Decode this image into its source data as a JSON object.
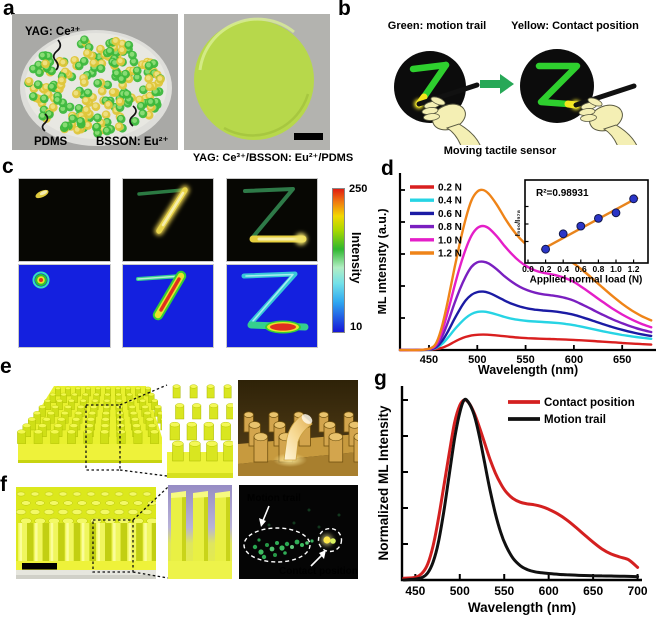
{
  "figure": {
    "panels": {
      "a": {
        "label": "a",
        "yag_label": "YAG: Ce³⁺",
        "pdms_label": "PDMS",
        "bsson_label": "BSSON: Eu²⁺",
        "caption": "YAG: Ce³⁺/BSSON: Eu²⁺/PDMS"
      },
      "b": {
        "label": "b",
        "green_label": "Green: motion trail",
        "yellow_label": "Yellow: Contact position",
        "caption": "Moving tactile sensor"
      },
      "c": {
        "label": "c",
        "colorbar": {
          "max": "250",
          "min": "10",
          "title": "Intensity"
        }
      },
      "d": {
        "label": "d"
      },
      "e": {
        "label": "e"
      },
      "f": {
        "label": "f",
        "annotations": {
          "motion_trail": "Motion trail",
          "contact_position": "Contact position"
        }
      },
      "g": {
        "label": "g"
      }
    }
  },
  "chart_data": [
    {
      "id": "d-ml-spectra",
      "type": "line",
      "xlabel": "Wavelength (nm)",
      "ylabel": "ML intensity (a.u.)",
      "xlim": [
        420,
        685
      ],
      "ylim": [
        0,
        1.1
      ],
      "xticks": [
        450,
        500,
        550,
        600,
        650
      ],
      "legend_position": "top-left",
      "x": [
        420,
        440,
        452,
        458,
        464,
        470,
        476,
        482,
        488,
        494,
        500,
        506,
        512,
        520,
        528,
        536,
        544,
        552,
        560,
        568,
        576,
        584,
        592,
        600,
        610,
        620,
        630,
        640,
        650,
        660,
        670,
        680
      ],
      "series": [
        {
          "name": "0.2 N",
          "color": "#d91f1f",
          "y": [
            0,
            0,
            0.002,
            0.006,
            0.015,
            0.03,
            0.05,
            0.068,
            0.082,
            0.091,
            0.095,
            0.096,
            0.095,
            0.091,
            0.086,
            0.081,
            0.077,
            0.074,
            0.072,
            0.07,
            0.069,
            0.067,
            0.065,
            0.063,
            0.06,
            0.056,
            0.052,
            0.048,
            0.044,
            0.04,
            0.037,
            0.034
          ]
        },
        {
          "name": "0.4 N",
          "color": "#27d4e4",
          "y": [
            0,
            0,
            0.004,
            0.015,
            0.04,
            0.08,
            0.125,
            0.165,
            0.2,
            0.225,
            0.238,
            0.24,
            0.235,
            0.222,
            0.207,
            0.195,
            0.187,
            0.181,
            0.178,
            0.175,
            0.172,
            0.168,
            0.162,
            0.155,
            0.143,
            0.13,
            0.117,
            0.105,
            0.094,
            0.085,
            0.077,
            0.07
          ]
        },
        {
          "name": "0.6 N",
          "color": "#1b1ba4",
          "y": [
            0,
            0,
            0.005,
            0.02,
            0.06,
            0.12,
            0.19,
            0.255,
            0.31,
            0.345,
            0.362,
            0.365,
            0.357,
            0.335,
            0.31,
            0.288,
            0.272,
            0.26,
            0.252,
            0.247,
            0.243,
            0.238,
            0.23,
            0.22,
            0.202,
            0.182,
            0.162,
            0.143,
            0.126,
            0.111,
            0.098,
            0.088
          ]
        },
        {
          "name": "0.8 N",
          "color": "#7a1fc0",
          "y": [
            0,
            0,
            0.007,
            0.03,
            0.09,
            0.18,
            0.285,
            0.38,
            0.46,
            0.52,
            0.548,
            0.552,
            0.54,
            0.505,
            0.462,
            0.425,
            0.395,
            0.373,
            0.358,
            0.348,
            0.342,
            0.335,
            0.324,
            0.308,
            0.28,
            0.25,
            0.22,
            0.192,
            0.167,
            0.145,
            0.127,
            0.112
          ]
        },
        {
          "name": "1.0 N",
          "color": "#e41ec8",
          "y": [
            0,
            0,
            0.01,
            0.04,
            0.125,
            0.25,
            0.39,
            0.52,
            0.63,
            0.715,
            0.762,
            0.775,
            0.76,
            0.712,
            0.652,
            0.598,
            0.553,
            0.52,
            0.497,
            0.483,
            0.474,
            0.463,
            0.447,
            0.425,
            0.386,
            0.343,
            0.3,
            0.259,
            0.222,
            0.19,
            0.163,
            0.142
          ]
        },
        {
          "name": "1.2 N",
          "color": "#ef8418",
          "y": [
            0,
            0,
            0.012,
            0.05,
            0.16,
            0.32,
            0.5,
            0.67,
            0.82,
            0.935,
            0.99,
            1.0,
            0.975,
            0.91,
            0.83,
            0.757,
            0.698,
            0.654,
            0.625,
            0.607,
            0.597,
            0.585,
            0.566,
            0.54,
            0.494,
            0.442,
            0.389,
            0.337,
            0.289,
            0.247,
            0.212,
            0.185
          ]
        }
      ],
      "inset": {
        "annotation": "R²=0.98931",
        "xlabel": "Applied normal load (N)",
        "ylabel": "I₅₀₀/I₅₇₈",
        "xticks": [
          "0.0",
          "0.2",
          "0.4",
          "0.6",
          "0.8",
          "1.0",
          "1.2"
        ],
        "points": {
          "x": [
            0.2,
            0.4,
            0.6,
            0.8,
            1.0,
            1.2
          ],
          "y": [
            0.14,
            0.36,
            0.47,
            0.58,
            0.66,
            0.86
          ]
        },
        "fit": {
          "x": [
            0.15,
            1.25
          ],
          "y": [
            0.13,
            0.88
          ]
        },
        "point_color": "#2b35c7",
        "fit_color": "#e8841c"
      }
    },
    {
      "id": "g-normalized-spectra",
      "type": "line",
      "xlabel": "Wavelength (nm)",
      "ylabel": "Normalized ML Intensity",
      "xlim": [
        435,
        705
      ],
      "ylim": [
        0,
        1.08
      ],
      "xticks": [
        450,
        500,
        550,
        600,
        650,
        700
      ],
      "legend_position": "top-right",
      "x": [
        437,
        450,
        458,
        464,
        470,
        476,
        482,
        488,
        494,
        500,
        505,
        510,
        516,
        522,
        528,
        534,
        540,
        546,
        552,
        560,
        568,
        576,
        584,
        592,
        600,
        610,
        620,
        630,
        640,
        650,
        660,
        670,
        680,
        690,
        700
      ],
      "series": [
        {
          "name": "Contact position",
          "color": "#d42020",
          "y": [
            0.01,
            0.015,
            0.04,
            0.09,
            0.19,
            0.34,
            0.52,
            0.7,
            0.87,
            0.97,
            1.0,
            0.985,
            0.93,
            0.85,
            0.76,
            0.67,
            0.595,
            0.535,
            0.49,
            0.452,
            0.432,
            0.423,
            0.418,
            0.408,
            0.393,
            0.368,
            0.335,
            0.295,
            0.252,
            0.21,
            0.172,
            0.145,
            0.128,
            0.112,
            0.07
          ]
        },
        {
          "name": "Motion trail",
          "color": "#101010",
          "y": [
            0,
            0.005,
            0.015,
            0.04,
            0.1,
            0.21,
            0.38,
            0.58,
            0.78,
            0.93,
            1.0,
            0.985,
            0.92,
            0.8,
            0.65,
            0.5,
            0.37,
            0.265,
            0.19,
            0.12,
            0.08,
            0.058,
            0.046,
            0.04,
            0.036,
            0.032,
            0.029,
            0.027,
            0.025,
            0.024,
            0.023,
            0.022,
            0.021,
            0.02,
            0.019
          ]
        }
      ]
    }
  ]
}
